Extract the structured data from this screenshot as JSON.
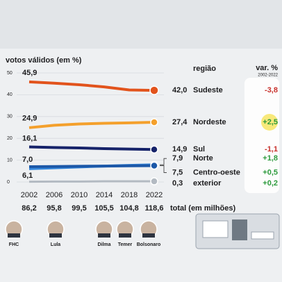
{
  "chart_data": {
    "type": "line",
    "title": "votos válidos (em %)",
    "legend_title": "região",
    "change_title": "var. %",
    "change_period": "2002-2022",
    "x": [
      2002,
      2006,
      2010,
      2014,
      2018,
      2022
    ],
    "xlim": [
      2002,
      2022
    ],
    "xticks": [
      2002,
      2006,
      2010,
      2014,
      2018,
      2022
    ],
    "ylim": [
      0,
      50
    ],
    "yticks": [
      0,
      10,
      20,
      30,
      40,
      50
    ],
    "grid": true,
    "series": [
      {
        "name": "Sudeste",
        "color": "#e2531c",
        "values": [
          45.9,
          45.3,
          44.6,
          43.6,
          42.2,
          42.0
        ],
        "value_labels": [
          "45,9",
          null,
          null,
          null,
          null,
          "42,0"
        ],
        "change": -3.8,
        "change_label": "-3,8"
      },
      {
        "name": "Nordeste",
        "color": "#f4a02c",
        "values": [
          24.9,
          26.0,
          26.6,
          26.9,
          27.1,
          27.4
        ],
        "value_labels": [
          "24,9",
          null,
          null,
          null,
          null,
          "27,4"
        ],
        "change": 2.5,
        "change_label": "+2,5"
      },
      {
        "name": "Sul",
        "color": "#16236a",
        "values": [
          16.1,
          15.8,
          15.6,
          15.3,
          15.1,
          14.9
        ],
        "value_labels": [
          "16,1",
          null,
          null,
          null,
          null,
          "14,9"
        ],
        "change": -1.1,
        "change_label": "-1,1"
      },
      {
        "name": "Norte",
        "color": "#3588dc",
        "values": [
          6.1,
          6.5,
          6.9,
          7.3,
          7.6,
          7.9
        ],
        "value_labels": [
          "6,1",
          null,
          null,
          null,
          null,
          "7,9"
        ],
        "change": 1.8,
        "change_label": "+1,8"
      },
      {
        "name": "Centro-oeste",
        "color": "#1c58a8",
        "values": [
          7.0,
          7.1,
          7.2,
          7.3,
          7.4,
          7.5
        ],
        "value_labels": [
          "7,0",
          null,
          null,
          null,
          null,
          "7,5"
        ],
        "change": 0.5,
        "change_label": "+0,5"
      },
      {
        "name": "exterior",
        "color": "#b3bac2",
        "values": [
          0.1,
          0.2,
          0.2,
          0.3,
          0.3,
          0.3
        ],
        "value_labels": [
          null,
          null,
          null,
          null,
          null,
          "0,3"
        ],
        "change": 0.2,
        "change_label": "+0,2"
      }
    ],
    "totals": {
      "label": "total (em milhões)",
      "values": [
        86.2,
        95.8,
        99.5,
        105.5,
        104.8,
        118.6
      ],
      "value_labels": [
        "86,2",
        "95,8",
        "99,5",
        "105,5",
        "104,8",
        "118,6"
      ]
    },
    "presidents": [
      "FHC",
      "Lula",
      "Dilma",
      "Temer",
      "Bolsonaro"
    ]
  }
}
